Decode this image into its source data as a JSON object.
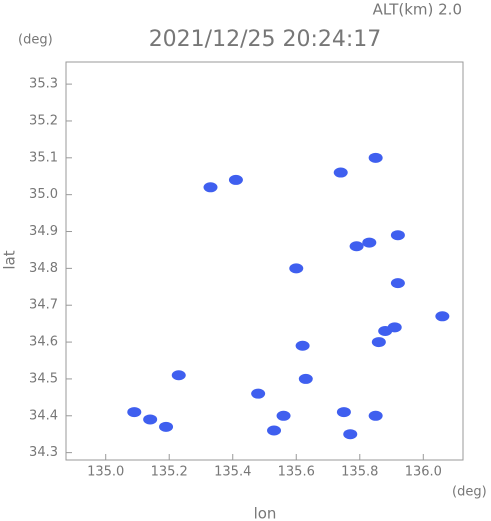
{
  "chart_data": {
    "type": "scatter",
    "header": "ALT(km)  2.0",
    "title": "2021/12/25 20:24:17",
    "y_unit": "(deg)",
    "x_unit": "(deg)",
    "xlabel": "lon",
    "ylabel": "lat",
    "xlim": [
      134.875,
      136.125
    ],
    "ylim": [
      34.28,
      35.36
    ],
    "xticks": [
      {
        "value": 135,
        "label": "135.0"
      },
      135.2,
      135.4,
      135.6,
      135.8,
      {
        "value": 136,
        "label": "136.0"
      }
    ],
    "yticks": [
      34.3,
      34.4,
      34.5,
      34.6,
      34.7,
      34.8,
      34.9,
      {
        "value": 35,
        "label": "35.0"
      },
      35.1,
      35.2,
      35.3
    ],
    "color": "#3f5fef",
    "grid": false,
    "x": [
      135.33,
      135.41,
      135.85,
      135.74,
      135.92,
      135.83,
      135.79,
      135.6,
      135.92,
      135.88,
      135.91,
      135.86,
      136.06,
      135.62,
      135.63,
      135.48,
      135.23,
      135.56,
      135.53,
      135.77,
      135.85,
      135.75,
      135.09,
      135.14,
      135.19
    ],
    "values": [
      35.02,
      35.04,
      35.1,
      35.06,
      34.89,
      34.87,
      34.86,
      34.8,
      34.76,
      34.63,
      34.64,
      34.6,
      34.67,
      34.59,
      34.5,
      34.46,
      34.51,
      34.4,
      34.36,
      34.35,
      34.4,
      34.41,
      34.41,
      34.39,
      34.37
    ]
  }
}
